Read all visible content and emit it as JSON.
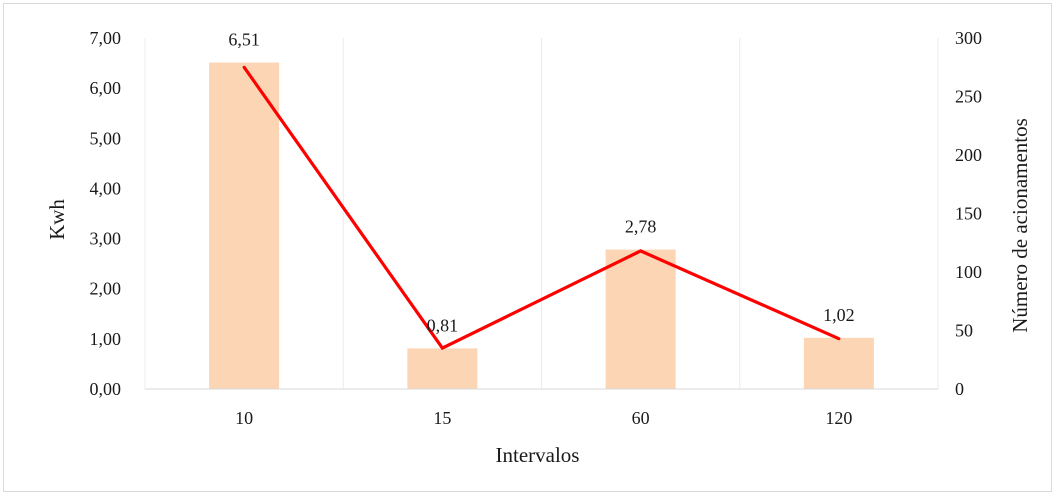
{
  "chart_data": {
    "type": "bar",
    "categories": [
      "10",
      "15",
      "60",
      "120"
    ],
    "series": [
      {
        "type": "bar",
        "axis": "left",
        "values": [
          6.51,
          0.81,
          2.78,
          1.02
        ],
        "color": "#fcd5b5"
      },
      {
        "type": "line",
        "axis": "right",
        "values": [
          275,
          35,
          118,
          43
        ],
        "color": "#ff0000"
      }
    ],
    "data_labels": [
      "6,51",
      "0,81",
      "2,78",
      "1,02"
    ],
    "xlabel": "Intervalos",
    "ylabel": "Kwh",
    "y2label": "Número de acionamentos",
    "ylim": [
      0,
      7
    ],
    "y2lim": [
      0,
      300
    ],
    "yticks": [
      "0,00",
      "1,00",
      "2,00",
      "3,00",
      "4,00",
      "5,00",
      "6,00",
      "7,00"
    ],
    "y2ticks": [
      "0",
      "50",
      "100",
      "150",
      "200",
      "250",
      "300"
    ],
    "grid": "vertical",
    "legend": "none"
  }
}
